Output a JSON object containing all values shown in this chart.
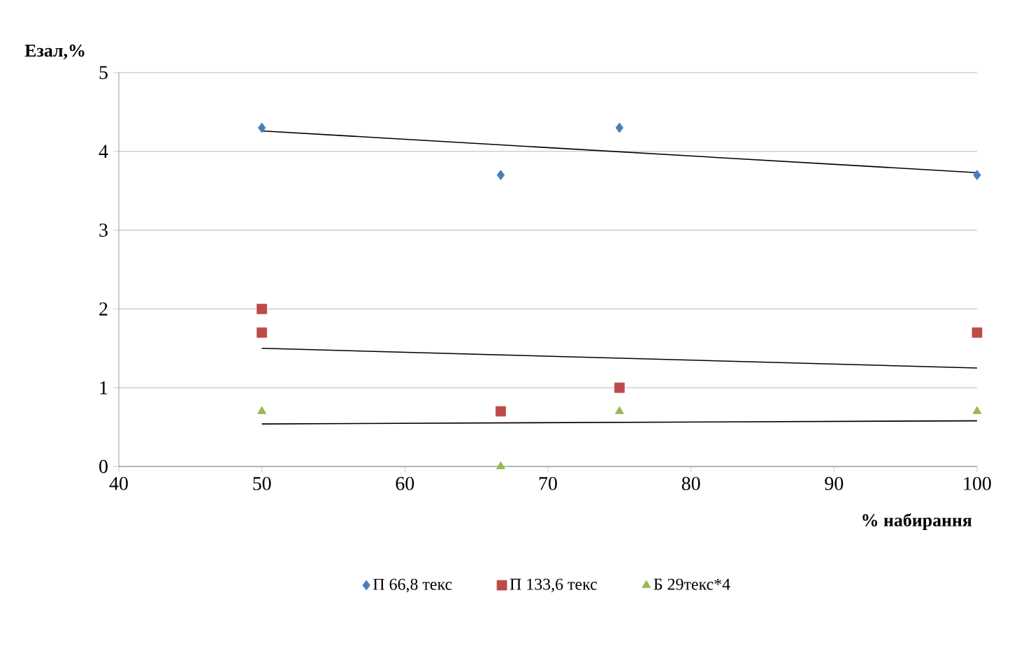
{
  "chart_data": {
    "type": "scatter",
    "xlabel": "% набирання",
    "ylabel": "Езал,%",
    "xlim": [
      40,
      100
    ],
    "xticks": [
      40,
      50,
      60,
      70,
      80,
      90,
      100
    ],
    "ylim": [
      0,
      5
    ],
    "yticks": [
      0,
      1,
      2,
      3,
      4,
      5
    ],
    "grid": "y",
    "legend": "bottom",
    "series": [
      {
        "name": "П 66,8 текс",
        "color": "#4a7ebb",
        "marker": "diamond",
        "x": [
          50,
          66.7,
          75,
          100
        ],
        "values": [
          4.3,
          3.7,
          4.3,
          3.7
        ]
      },
      {
        "name": "П 133,6 текс",
        "color": "#be4b48",
        "marker": "square",
        "x": [
          50,
          50,
          66.7,
          75,
          100
        ],
        "values": [
          2.0,
          1.7,
          0.7,
          1.0,
          1.7
        ]
      },
      {
        "name": "Б 29текс*4",
        "color": "#98b954",
        "marker": "triangle",
        "x": [
          50,
          66.7,
          75,
          100
        ],
        "values": [
          0.7,
          0,
          0.7,
          0.7
        ]
      },
      {
        "type": "line",
        "color": "#000000",
        "marker": "none",
        "line_style": "solid",
        "x": [
          50,
          100
        ],
        "values": [
          4.26,
          3.73
        ]
      },
      {
        "type": "line",
        "color": "#000000",
        "marker": "none",
        "line_style": "solid",
        "x": [
          50,
          100
        ],
        "values": [
          1.5,
          1.25
        ]
      },
      {
        "type": "line",
        "color": "#000000",
        "marker": "none",
        "line_style": "solid",
        "x": [
          50,
          100
        ],
        "values": [
          0.54,
          0.58
        ]
      }
    ]
  }
}
